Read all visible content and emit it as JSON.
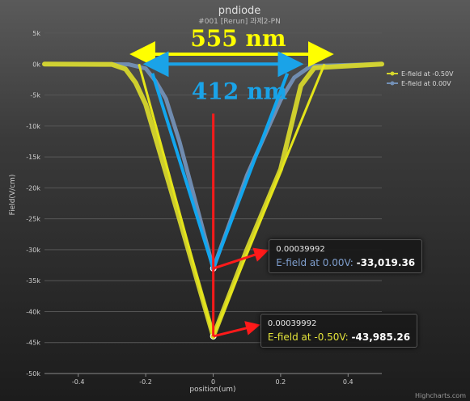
{
  "chart_data": {
    "type": "line",
    "title": "pndiode",
    "subtitle": "#001 [Rerun] 과제2-PN",
    "xlabel": "position(um)",
    "ylabel": "Field(V/cm)",
    "xlim": [
      -0.5,
      0.5
    ],
    "ylim": [
      -50000,
      5000
    ],
    "x_ticks": [
      "-0.4",
      "-0.2",
      "0",
      "0.2",
      "0.4"
    ],
    "x_tick_values": [
      -0.4,
      -0.2,
      0,
      0.2,
      0.4
    ],
    "y_ticks": [
      "5k",
      "0k",
      "-5k",
      "-10k",
      "-15k",
      "-20k",
      "-25k",
      "-30k",
      "-35k",
      "-40k",
      "-45k",
      "-50k"
    ],
    "y_tick_values": [
      5000,
      0,
      -5000,
      -10000,
      -15000,
      -20000,
      -25000,
      -30000,
      -35000,
      -40000,
      -45000,
      -50000
    ],
    "grid": true,
    "legend_position": "top-right",
    "series": [
      {
        "name": "E-field at -0.50V",
        "color": "#d6d62c",
        "x": [
          -0.5,
          -0.3,
          -0.26,
          -0.23,
          -0.2,
          -0.1,
          0.0004,
          0.1,
          0.2,
          0.26,
          0.3,
          0.5
        ],
        "y": [
          0,
          -50,
          -800,
          -3000,
          -6500,
          -25000,
          -43985.26,
          -30000,
          -17000,
          -3500,
          -600,
          0
        ]
      },
      {
        "name": "E-field at 0.00V",
        "color": "#7390b6",
        "x": [
          -0.5,
          -0.25,
          -0.2,
          -0.17,
          -0.14,
          -0.1,
          0.0004,
          0.1,
          0.2,
          0.24,
          0.29,
          0.5
        ],
        "y": [
          0,
          -50,
          -700,
          -2800,
          -5600,
          -12500,
          -33019.36,
          -18000,
          -5800,
          -2200,
          -300,
          0
        ]
      }
    ],
    "annotations": [
      {
        "text": "555 nm",
        "color": "#ffff00",
        "x_from": -0.2,
        "x_to": 0.31,
        "y": 2000
      },
      {
        "text": "412 nm",
        "color": "#1aa3e8",
        "x_from": -0.17,
        "x_to": 0.23,
        "y": 0
      }
    ],
    "tooltips": [
      {
        "header": "0.00039992",
        "label": "E-field at 0.00V: ",
        "value": "-33,019.36",
        "color": "#7f9fcf",
        "point_x": 0.0004,
        "point_y": -33019.36,
        "box_x": 0.165,
        "box_y": -29000
      },
      {
        "header": "0.00039992",
        "label": "E-field at -0.50V: ",
        "value": "-43,985.26",
        "color": "#e3e33a",
        "point_x": 0.0004,
        "point_y": -43985.26,
        "box_x": 0.14,
        "box_y": -41000
      }
    ],
    "credits": "Highcharts.com"
  }
}
